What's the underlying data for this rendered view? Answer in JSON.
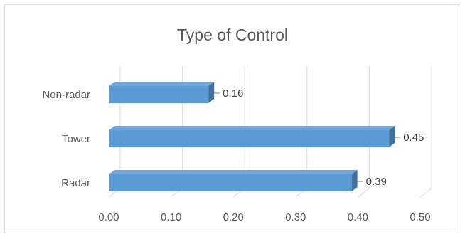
{
  "chart_data": {
    "type": "bar",
    "orientation": "horizontal",
    "title": "Type of Control",
    "categories": [
      "Non-radar",
      "Tower",
      "Radar"
    ],
    "series": [
      {
        "values": [
          0.16,
          0.45,
          0.39
        ]
      }
    ],
    "data_labels": [
      "0.16",
      "0.45",
      "0.39"
    ],
    "x_ticks": [
      "0.00",
      "0.10",
      "0.20",
      "0.30",
      "0.40",
      "0.50"
    ],
    "xlim": [
      0,
      0.5
    ],
    "grid": true,
    "legend": "none",
    "style_3d": true,
    "colors": {
      "bar_front": "#5b9bd5",
      "bar_top": "#6fa8dc",
      "bar_side": "#41719c",
      "gridline": "#d9d9d9",
      "text": "#595959"
    }
  }
}
